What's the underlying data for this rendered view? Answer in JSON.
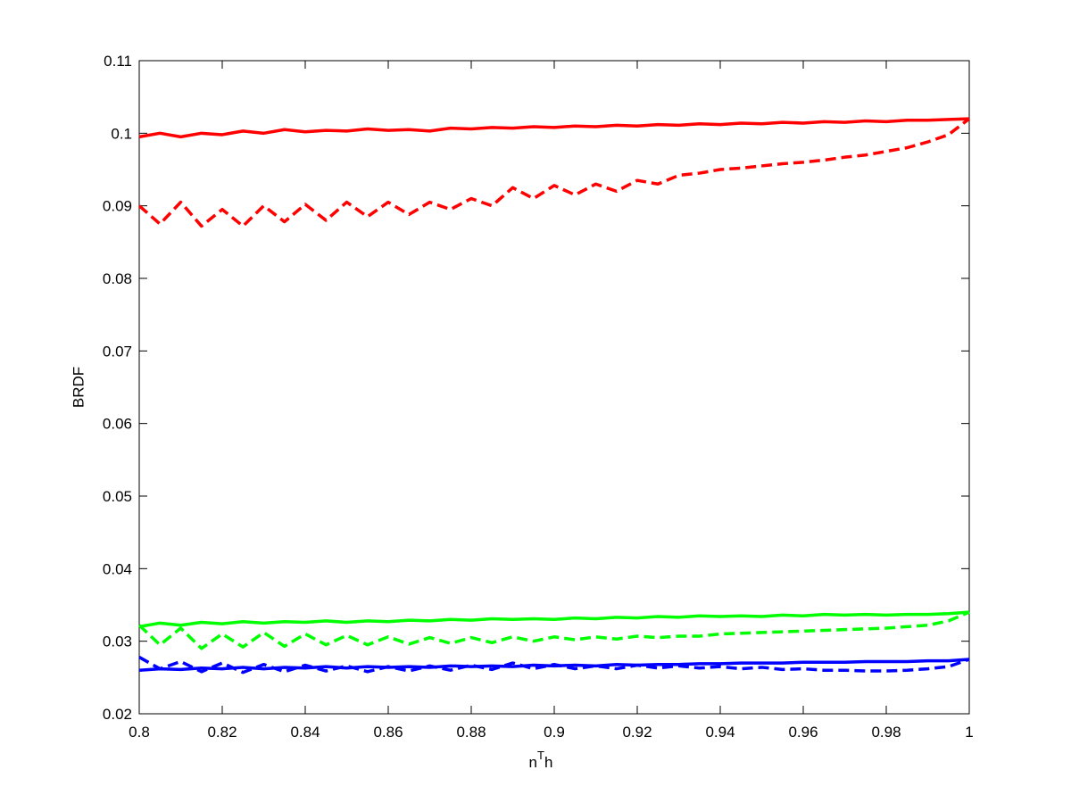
{
  "chart_data": {
    "type": "line",
    "xlabel": [
      "n",
      "T",
      "h"
    ],
    "ylabel": "BRDF",
    "x": [
      0.8,
      0.805,
      0.81,
      0.815,
      0.82,
      0.825,
      0.83,
      0.835,
      0.84,
      0.845,
      0.85,
      0.855,
      0.86,
      0.865,
      0.87,
      0.875,
      0.88,
      0.885,
      0.89,
      0.895,
      0.9,
      0.905,
      0.91,
      0.915,
      0.92,
      0.925,
      0.93,
      0.935,
      0.94,
      0.945,
      0.95,
      0.955,
      0.96,
      0.965,
      0.97,
      0.975,
      0.98,
      0.985,
      0.99,
      0.995,
      1
    ],
    "series": [
      {
        "color": "#ff0000",
        "dashed": false,
        "values": [
          0.0995,
          0.1,
          0.0995,
          0.1,
          0.0998,
          0.1003,
          0.1,
          0.1005,
          0.1002,
          0.1004,
          0.1003,
          0.1006,
          0.1004,
          0.1005,
          0.1003,
          0.1007,
          0.1006,
          0.1008,
          0.1007,
          0.1009,
          0.1008,
          0.101,
          0.1009,
          0.1011,
          0.101,
          0.1012,
          0.1011,
          0.1013,
          0.1012,
          0.1014,
          0.1013,
          0.1015,
          0.1014,
          0.1016,
          0.1015,
          0.1017,
          0.1016,
          0.1018,
          0.1018,
          0.1019,
          0.102
        ]
      },
      {
        "color": "#ff0000",
        "dashed": true,
        "values": [
          0.09,
          0.0875,
          0.0905,
          0.0872,
          0.0895,
          0.0872,
          0.09,
          0.0878,
          0.0902,
          0.088,
          0.0905,
          0.0885,
          0.0905,
          0.0888,
          0.0905,
          0.0895,
          0.091,
          0.09,
          0.0925,
          0.091,
          0.0928,
          0.0915,
          0.093,
          0.092,
          0.0935,
          0.093,
          0.0942,
          0.0945,
          0.095,
          0.0952,
          0.0955,
          0.0958,
          0.096,
          0.0963,
          0.0967,
          0.097,
          0.0975,
          0.098,
          0.0988,
          0.0998,
          0.102
        ]
      },
      {
        "color": "#00ff00",
        "dashed": false,
        "values": [
          0.032,
          0.0325,
          0.0322,
          0.0326,
          0.0324,
          0.0327,
          0.0325,
          0.0327,
          0.0326,
          0.0328,
          0.0326,
          0.0328,
          0.0327,
          0.0329,
          0.0328,
          0.033,
          0.0329,
          0.0331,
          0.033,
          0.0331,
          0.033,
          0.0332,
          0.0331,
          0.0333,
          0.0332,
          0.0334,
          0.0333,
          0.0335,
          0.0334,
          0.0335,
          0.0334,
          0.0336,
          0.0335,
          0.0337,
          0.0336,
          0.0337,
          0.0336,
          0.0337,
          0.0337,
          0.0338,
          0.034
        ]
      },
      {
        "color": "#00ff00",
        "dashed": true,
        "values": [
          0.0322,
          0.0295,
          0.0318,
          0.029,
          0.031,
          0.0292,
          0.0312,
          0.0293,
          0.031,
          0.0295,
          0.0308,
          0.0295,
          0.0306,
          0.0296,
          0.0305,
          0.0297,
          0.0305,
          0.0298,
          0.0306,
          0.03,
          0.0306,
          0.0302,
          0.0306,
          0.0303,
          0.0307,
          0.0305,
          0.0307,
          0.0307,
          0.031,
          0.0311,
          0.0312,
          0.0313,
          0.0314,
          0.0315,
          0.0316,
          0.0317,
          0.0318,
          0.032,
          0.0322,
          0.0328,
          0.034
        ]
      },
      {
        "color": "#0000ff",
        "dashed": false,
        "values": [
          0.026,
          0.0262,
          0.0261,
          0.0263,
          0.0262,
          0.0264,
          0.0262,
          0.0264,
          0.0263,
          0.0265,
          0.0263,
          0.0265,
          0.0264,
          0.0265,
          0.0264,
          0.0266,
          0.0265,
          0.0266,
          0.0265,
          0.0267,
          0.0266,
          0.0267,
          0.0266,
          0.0268,
          0.0267,
          0.0268,
          0.0268,
          0.0269,
          0.0269,
          0.027,
          0.027,
          0.027,
          0.0271,
          0.0271,
          0.0271,
          0.0272,
          0.0272,
          0.0272,
          0.0273,
          0.0273,
          0.0275
        ]
      },
      {
        "color": "#0000ff",
        "dashed": true,
        "values": [
          0.0278,
          0.0262,
          0.0272,
          0.0258,
          0.027,
          0.0257,
          0.0268,
          0.0258,
          0.0267,
          0.0259,
          0.0266,
          0.0258,
          0.0265,
          0.0259,
          0.0266,
          0.026,
          0.0267,
          0.0261,
          0.027,
          0.0262,
          0.0268,
          0.0262,
          0.0266,
          0.0262,
          0.0267,
          0.0263,
          0.0266,
          0.0263,
          0.0265,
          0.0262,
          0.0264,
          0.0261,
          0.0262,
          0.026,
          0.026,
          0.0259,
          0.0259,
          0.026,
          0.0262,
          0.0265,
          0.0275
        ]
      }
    ],
    "xlim": [
      0.8,
      1
    ],
    "ylim": [
      0.02,
      0.11
    ],
    "xticks": [
      0.8,
      0.82,
      0.84,
      0.86,
      0.88,
      0.9,
      0.92,
      0.94,
      0.96,
      0.98,
      1
    ],
    "yticks": [
      0.02,
      0.03,
      0.04,
      0.05,
      0.06,
      0.07,
      0.08,
      0.09,
      0.1,
      0.11
    ],
    "grid": false
  }
}
